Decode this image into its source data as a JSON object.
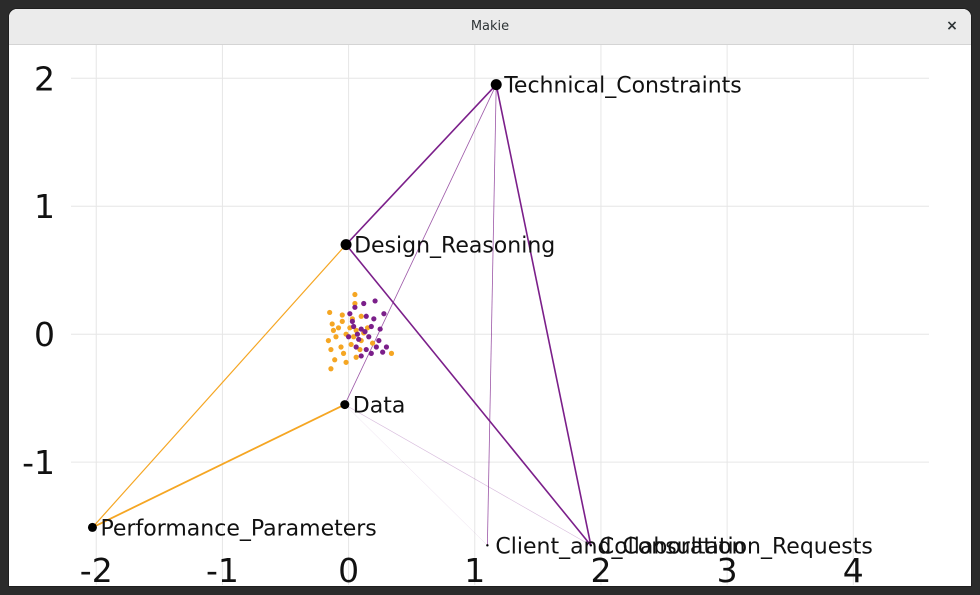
{
  "window": {
    "title": "Makie",
    "close_glyph": "×",
    "close_icon": "close-icon"
  },
  "colors": {
    "orange": "#f5a623",
    "purple": "#7b1f8a",
    "node": "#000000",
    "grid": "#e6e6e6"
  },
  "chart_data": {
    "type": "scatter",
    "title": "",
    "xlabel": "",
    "ylabel": "",
    "xlim": [
      -2.2,
      4.6
    ],
    "ylim": [
      -1.96,
      2.26
    ],
    "grid": true,
    "x_ticks": [
      -2,
      -1,
      0,
      1,
      2,
      3,
      4
    ],
    "y_ticks": [
      -1,
      0,
      1,
      2
    ],
    "nodes": [
      {
        "label": "Technical_Constraints",
        "x": 1.17,
        "y": 1.95,
        "size": 5.5
      },
      {
        "label": "Design_Reasoning",
        "x": -0.02,
        "y": 0.7,
        "size": 5.5
      },
      {
        "label": "Data",
        "x": -0.03,
        "y": -0.55,
        "size": 4.5
      },
      {
        "label": "Performance_Parameters",
        "x": -2.03,
        "y": -1.51,
        "size": 4.5
      },
      {
        "label": "Client_and_Consultation_Requests",
        "x": 1.1,
        "y": -1.65,
        "size": 1.2
      },
      {
        "label": "Collaboration",
        "x": 1.92,
        "y": -1.65,
        "size": 1.2
      }
    ],
    "edges": [
      {
        "from": "Design_Reasoning",
        "to": "Technical_Constraints",
        "color": "purple",
        "width": 1.6,
        "opacity": 1.0
      },
      {
        "from": "Design_Reasoning",
        "to": "Collaboration",
        "color": "purple",
        "width": 1.6,
        "opacity": 1.0
      },
      {
        "from": "Technical_Constraints",
        "to": "Collaboration",
        "color": "purple",
        "width": 1.6,
        "opacity": 1.0
      },
      {
        "from": "Data",
        "to": "Technical_Constraints",
        "color": "purple",
        "width": 0.8,
        "opacity": 0.75
      },
      {
        "from": "Client_and_Consultation_Requests",
        "to": "Technical_Constraints",
        "color": "purple",
        "width": 0.8,
        "opacity": 0.75
      },
      {
        "from": "Data",
        "to": "Collaboration",
        "color": "purple",
        "width": 0.6,
        "opacity": 0.3
      },
      {
        "from": "Data",
        "to": "Client_and_Consultation_Requests",
        "color": "purple",
        "width": 0.5,
        "opacity": 0.15
      },
      {
        "from": "Design_Reasoning",
        "to": "Performance_Parameters",
        "color": "orange",
        "width": 1.2,
        "opacity": 1.0
      },
      {
        "from": "Data",
        "to": "Performance_Parameters",
        "color": "orange",
        "width": 1.8,
        "opacity": 1.0
      }
    ],
    "cluster_orange": [
      [
        -0.15,
        0.17
      ],
      [
        -0.05,
        0.15
      ],
      [
        0.05,
        0.24
      ],
      [
        -0.13,
        0.08
      ],
      [
        -0.05,
        0.1
      ],
      [
        0.03,
        0.12
      ],
      [
        0.1,
        0.14
      ],
      [
        -0.16,
        -0.05
      ],
      [
        -0.1,
        -0.02
      ],
      [
        -0.02,
        0.0
      ],
      [
        0.06,
        0.03
      ],
      [
        0.15,
        0.05
      ],
      [
        -0.14,
        -0.12
      ],
      [
        -0.06,
        -0.1
      ],
      [
        0.02,
        -0.08
      ],
      [
        0.09,
        -0.12
      ],
      [
        -0.11,
        -0.2
      ],
      [
        -0.02,
        -0.22
      ],
      [
        0.06,
        -0.18
      ],
      [
        -0.14,
        -0.27
      ],
      [
        0.01,
        0.05
      ],
      [
        -0.08,
        0.05
      ],
      [
        0.1,
        -0.05
      ],
      [
        0.19,
        -0.07
      ],
      [
        0.34,
        -0.15
      ],
      [
        -0.04,
        -0.15
      ],
      [
        0.04,
        -0.02
      ],
      [
        0.12,
        0.01
      ],
      [
        0.05,
        0.31
      ],
      [
        -0.12,
        0.03
      ]
    ],
    "cluster_purple": [
      [
        0.05,
        0.21
      ],
      [
        0.12,
        0.24
      ],
      [
        0.21,
        0.26
      ],
      [
        0.01,
        0.16
      ],
      [
        0.14,
        0.14
      ],
      [
        0.28,
        0.16
      ],
      [
        0.04,
        0.06
      ],
      [
        0.1,
        0.04
      ],
      [
        0.18,
        0.06
      ],
      [
        0.25,
        0.04
      ],
      [
        0.0,
        -0.02
      ],
      [
        0.08,
        -0.04
      ],
      [
        0.16,
        -0.02
      ],
      [
        0.24,
        -0.05
      ],
      [
        0.06,
        -0.1
      ],
      [
        0.14,
        -0.12
      ],
      [
        0.22,
        -0.1
      ],
      [
        0.3,
        -0.1
      ],
      [
        0.1,
        -0.17
      ],
      [
        0.18,
        -0.15
      ],
      [
        0.03,
        0.1
      ],
      [
        0.2,
        0.12
      ],
      [
        0.13,
        0.02
      ],
      [
        0.27,
        -0.14
      ],
      [
        0.07,
        0.0
      ]
    ]
  }
}
